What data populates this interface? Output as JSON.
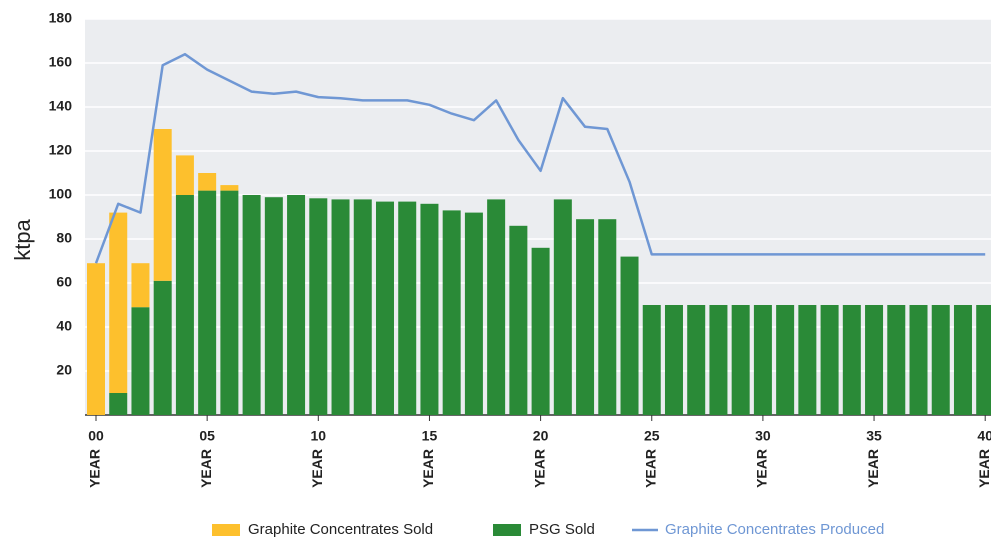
{
  "chart_data": {
    "type": "bar",
    "stacked": true,
    "y_label": "ktpa",
    "x_tick_word": "YEAR",
    "categories": [
      "00",
      null,
      null,
      null,
      null,
      "05",
      null,
      null,
      null,
      null,
      "10",
      null,
      null,
      null,
      null,
      "15",
      null,
      null,
      null,
      null,
      "20",
      null,
      null,
      null,
      null,
      "25",
      null,
      null,
      null,
      null,
      "30",
      null,
      null,
      null,
      null,
      "35",
      null,
      null,
      null,
      null,
      "40"
    ],
    "ylim": [
      0,
      180
    ],
    "yticks": [
      20,
      40,
      60,
      80,
      100,
      120,
      140,
      160,
      180
    ],
    "grid": true,
    "legend": "bottom",
    "series": [
      {
        "name": "Graphite Concentrates Sold",
        "type": "bar",
        "color": "#fdc02d",
        "values": [
          69,
          82,
          20,
          69,
          18,
          8,
          2.5,
          0,
          0,
          0,
          0,
          0,
          0,
          0,
          0,
          0,
          0,
          0,
          0,
          0,
          0,
          0,
          0,
          0,
          0,
          0,
          0,
          0,
          0,
          0,
          0,
          0,
          0,
          0,
          0,
          0,
          0,
          0,
          0,
          0,
          0
        ]
      },
      {
        "name": "PSG Sold",
        "type": "bar",
        "color": "#2a8a37",
        "values": [
          0,
          10,
          49,
          61,
          100,
          102,
          102,
          100,
          99,
          100,
          98.5,
          98,
          98,
          97,
          97,
          96,
          93,
          92,
          98,
          86,
          76,
          98,
          89,
          89,
          72,
          50,
          50,
          50,
          50,
          50,
          50,
          50,
          50,
          50,
          50,
          50,
          50,
          50,
          50,
          50,
          50
        ]
      },
      {
        "name": "Graphite Concentrates Produced",
        "type": "line",
        "color": "#6f97d4",
        "values": [
          69,
          96,
          92,
          159,
          164,
          157,
          152,
          147,
          146,
          147,
          144.5,
          144,
          143,
          143,
          143,
          141,
          137,
          134,
          143,
          125,
          111,
          144,
          131,
          130,
          106,
          73,
          73,
          73,
          73,
          73,
          73,
          73,
          73,
          73,
          73,
          73,
          73,
          73,
          73,
          73,
          73
        ]
      }
    ]
  }
}
